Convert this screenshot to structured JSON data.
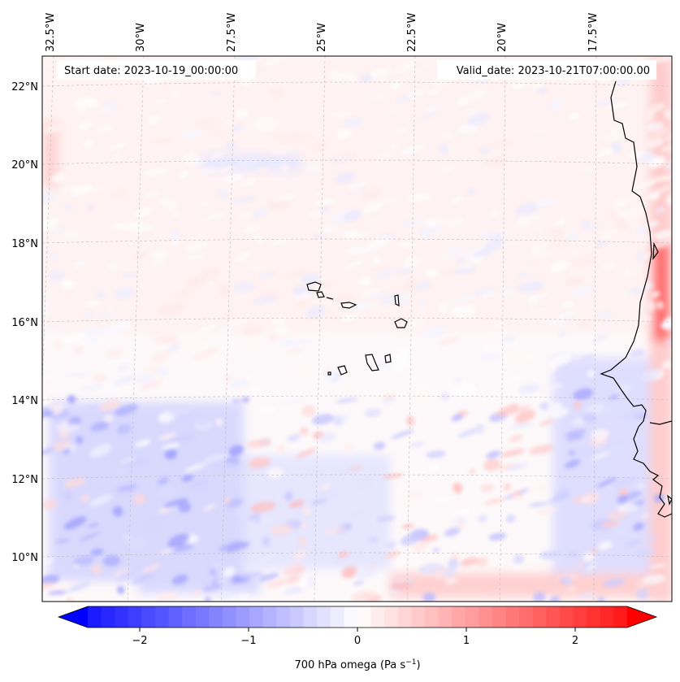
{
  "map": {
    "start_date": "Start date: 2023-10-19_00:00:00",
    "valid_date": "Valid_date: 2023-10-21T07:00:00.00",
    "lon_labels": [
      "32.5°W",
      "30°W",
      "27.5°W",
      "25°W",
      "22.5°W",
      "20°W",
      "17.5°W"
    ],
    "lat_labels": [
      "22°N",
      "20°N",
      "18°N",
      "16°N",
      "14°N",
      "12°N",
      "10°N"
    ],
    "coastline_color": "#000000",
    "gridline_color": "#bbbbbb"
  },
  "colorbar": {
    "label": "700 hPa omega (Pa s",
    "label_sup": "−1",
    "label_close": ")",
    "ticks": [
      "−2",
      "−1",
      "0",
      "1",
      "2"
    ],
    "min": -2.7,
    "max": 2.7,
    "tick_values": [
      -2,
      -1,
      0,
      1,
      2
    ],
    "colormap": "bwr",
    "color_low": "#0000ff",
    "color_mid": "#ffffff",
    "color_high": "#ff0000"
  }
}
